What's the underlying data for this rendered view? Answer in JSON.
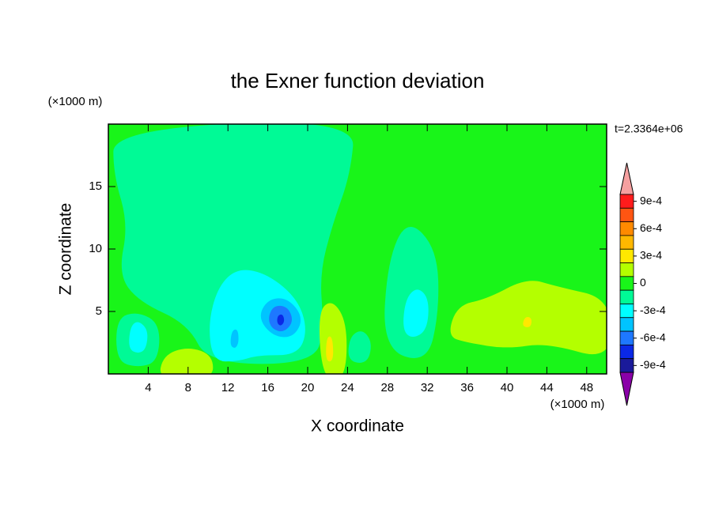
{
  "chart_data": {
    "type": "contour",
    "title": "the Exner function deviation",
    "xlabel": "X coordinate",
    "ylabel": "Z coordinate",
    "xunit": "(×1000 m)",
    "yunit": "(×1000 m)",
    "annotation": "t=2.3364e+06",
    "xlim": [
      0,
      50
    ],
    "ylim": [
      0,
      20
    ],
    "xticks": [
      4,
      8,
      12,
      16,
      20,
      24,
      28,
      32,
      36,
      40,
      44,
      48
    ],
    "yticks": [
      5,
      10,
      15
    ],
    "background_level": 0,
    "colorbar": {
      "levels": [
        0.0009,
        0.00075,
        0.0006,
        0.00045,
        0.0003,
        0.00015,
        0,
        -0.00015,
        -0.0003,
        -0.00045,
        -0.0006,
        -0.00075,
        -0.0009
      ],
      "colors": [
        "#ff1c1c",
        "#ff5512",
        "#ff8a00",
        "#ffb800",
        "#ffe800",
        "#b4ff00",
        "#19f519",
        "#00fa96",
        "#00ffff",
        "#00c4ff",
        "#1e78ff",
        "#0a28e6",
        "#1a1a9a"
      ],
      "over_color": "#f5a0a0",
      "under_color": "#8a00a8",
      "ticks": [
        {
          "value": 0.0009,
          "label": "9e-4"
        },
        {
          "value": 0.0006,
          "label": "6e-4"
        },
        {
          "value": 0.0003,
          "label": "3e-4"
        },
        0,
        {
          "value": -0.0003,
          "label": "-3e-4"
        },
        {
          "value": -0.0006,
          "label": "-6e-4"
        },
        {
          "value": -0.0009,
          "label": "-9e-4"
        }
      ]
    },
    "regions": [
      {
        "level": -0.00015,
        "x": [
          0.5,
          24.8,
          24.3,
          22.5,
          21.2,
          21.6,
          20.8,
          10,
          8,
          3,
          1,
          2,
          0.5
        ],
        "z": [
          19.6,
          20.5,
          16,
          12,
          8,
          4,
          0.8,
          0.8,
          4,
          5.8,
          8,
          12,
          16
        ]
      },
      {
        "level": -0.00015,
        "x": [
          27.5,
          28,
          30,
          33,
          33.2,
          32
        ],
        "z": [
          2,
          9,
          12.5,
          10,
          5,
          0.8
        ]
      },
      {
        "level": -0.00015,
        "x": [
          0.8,
          0.8,
          3,
          5.2,
          5,
          3
        ],
        "z": [
          1,
          4.5,
          5,
          4,
          1,
          0.5
        ]
      },
      {
        "level": -0.00015,
        "x": [
          24,
          24.2,
          25.5,
          26.5,
          26
        ],
        "z": [
          1,
          3,
          3.6,
          2.5,
          0.8
        ]
      },
      {
        "level": -0.0003,
        "x": [
          10.5,
          10,
          11,
          13,
          16,
          19,
          20,
          19,
          15,
          13
        ],
        "z": [
          1,
          4,
          7,
          8.5,
          8,
          6,
          3.5,
          1.5,
          1.5,
          1
        ]
      },
      {
        "level": -0.0003,
        "x": [
          29.5,
          29.8,
          31,
          32.2,
          32,
          30.5
        ],
        "z": [
          3.5,
          6,
          7,
          6,
          3.5,
          2.8
        ]
      },
      {
        "level": -0.0003,
        "x": [
          2,
          2.2,
          3,
          4,
          3.8,
          3
        ],
        "z": [
          2,
          3.8,
          4.3,
          3.5,
          2,
          1.6
        ]
      },
      {
        "level": -0.00045,
        "x": [
          15,
          16,
          18,
          19.6,
          18.6,
          16.5
        ],
        "z": [
          4.5,
          6,
          6.1,
          4.5,
          2.9,
          3
        ]
      },
      {
        "level": -0.00045,
        "x": [
          12.2,
          12.4,
          13,
          13.1,
          12.7
        ],
        "z": [
          2.3,
          3.5,
          3.6,
          2.5,
          2
        ]
      },
      {
        "level": -0.0006,
        "x": [
          16,
          16.6,
          18,
          18.6,
          17.6,
          16.4
        ],
        "z": [
          4.5,
          5.5,
          5.4,
          4.2,
          3.3,
          3.6
        ]
      },
      {
        "level": -0.00075,
        "x": [
          16.9,
          17,
          17.5,
          17.7,
          17.3
        ],
        "z": [
          4.1,
          4.7,
          4.8,
          4.2,
          3.8
        ]
      },
      {
        "level": 0.00015,
        "x": [
          34,
          35,
          38,
          42,
          45,
          50.5,
          50.5,
          44,
          40,
          36
        ],
        "z": [
          3,
          5.5,
          6,
          7.7,
          7,
          6,
          1,
          2.5,
          2,
          2.5
        ]
      },
      {
        "level": 0.00015,
        "x": [
          21.5,
          21,
          22.5,
          24,
          23.8
        ],
        "z": [
          -0.5,
          5,
          6,
          4,
          -0.5
        ]
      },
      {
        "level": 0.00015,
        "x": [
          5,
          5.5,
          8,
          10.5,
          10.5
        ],
        "z": [
          -0.5,
          1.5,
          2.2,
          1.5,
          -0.5
        ]
      },
      {
        "level": 0.0003,
        "x": [
          21.8,
          21.9,
          22.5,
          22.6
        ],
        "z": [
          1,
          3,
          3,
          1
        ]
      },
      {
        "level": 0.0003,
        "x": [
          41.5,
          41.8,
          42.5,
          42.4
        ],
        "z": [
          3.8,
          4.6,
          4.5,
          3.7
        ]
      }
    ]
  }
}
